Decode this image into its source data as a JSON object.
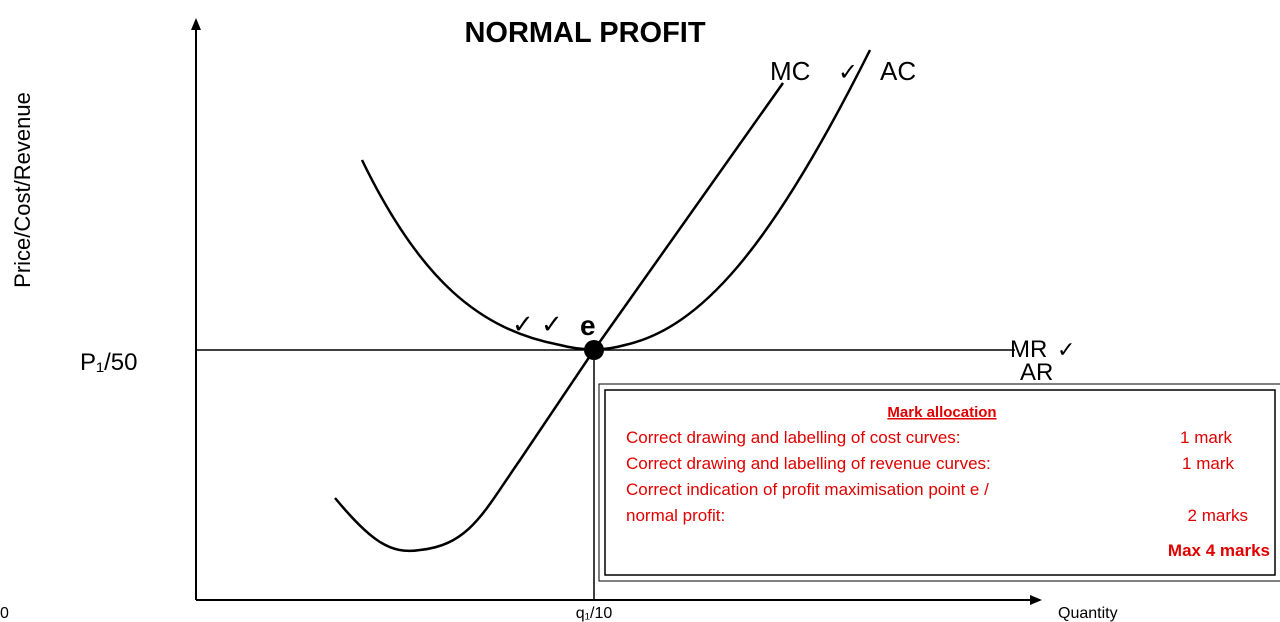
{
  "title": "NORMAL PROFIT",
  "axes": {
    "y_label": "Price/Cost/Revenue",
    "x_label": "Quantity",
    "origin": "0",
    "price": "P₁/50",
    "quantity": "q₁/10"
  },
  "curves": {
    "mc": "MC",
    "ac": "AC",
    "mr": "MR",
    "ar": "AR",
    "point": "e"
  },
  "ticks": {
    "mc_ac": "✓",
    "mr": "✓",
    "point": "✓ ✓"
  },
  "mark_allocation": {
    "heading": "Mark allocation",
    "rows": [
      {
        "text": "Correct drawing and labelling of cost curves:",
        "mark": "1 mark"
      },
      {
        "text": "Correct drawing and labelling of revenue curves:",
        "mark": "1 mark"
      },
      {
        "text": "Correct indication of profit maximisation point e /",
        "mark": null
      },
      {
        "text": "normal profit:",
        "mark": "2 marks"
      }
    ],
    "total": "Max 4 marks"
  }
}
